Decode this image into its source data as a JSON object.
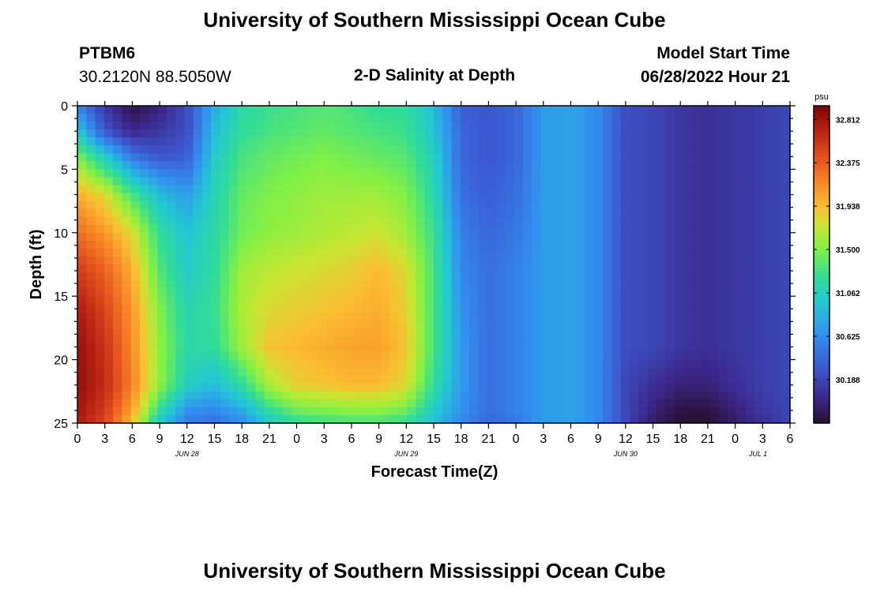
{
  "page": {
    "title": "University of Southern Mississippi Ocean Cube",
    "station_id": "PTBM6",
    "station_coords": "30.2120N  88.5050W",
    "plot_title": "2-D Salinity at Depth",
    "model_start_label": "Model Start Time",
    "model_start_value": "06/28/2022 Hour 21",
    "footer_title": "University of Southern Mississippi Ocean Cube"
  },
  "chart_data": {
    "type": "heatmap",
    "title": "2-D Salinity at Depth",
    "xlabel": "Forecast Time(Z)",
    "ylabel": "Depth (ft)",
    "x_range_hours": [
      0,
      78
    ],
    "y_range_ft": [
      0,
      25
    ],
    "x_tick_labels": [
      "0",
      "3",
      "6",
      "9",
      "12",
      "15",
      "18",
      "21",
      "0",
      "3",
      "6",
      "9",
      "12",
      "15",
      "18",
      "21",
      "0",
      "3",
      "6",
      "9",
      "12",
      "15",
      "18",
      "21",
      "0",
      "3",
      "6"
    ],
    "date_labels": [
      {
        "label": "JUN 28",
        "hour": 12
      },
      {
        "label": "JUN 29",
        "hour": 36
      },
      {
        "label": "JUN 30",
        "hour": 60
      },
      {
        "label": "JUL 1",
        "hour": 74.5
      }
    ],
    "y_ticks": [
      0,
      5,
      10,
      15,
      20,
      25
    ],
    "colorbar": {
      "unit": "psu",
      "min": 29.75,
      "max": 32.95,
      "tick_labels": [
        "32.812",
        "32.375",
        "31.938",
        "31.500",
        "31.062",
        "30.625",
        "30.188"
      ]
    },
    "salinity_grid": {
      "depths_ft": [
        0,
        2,
        4,
        7,
        10,
        13,
        16,
        19,
        22,
        24,
        25
      ],
      "hours": [
        0,
        3,
        6,
        9,
        12,
        15,
        18,
        21,
        24,
        27,
        30,
        33,
        36,
        39,
        42,
        45,
        48,
        51,
        54,
        57,
        60,
        63,
        66,
        69,
        72,
        75,
        78
      ],
      "values": [
        [
          30.55,
          30.1,
          29.8,
          29.95,
          30.25,
          30.8,
          31.15,
          31.25,
          31.3,
          31.35,
          31.3,
          31.2,
          31.2,
          30.9,
          30.35,
          30.3,
          30.4,
          30.7,
          30.75,
          30.6,
          30.25,
          30.2,
          30.1,
          30.05,
          30.1,
          30.15,
          30.2
        ],
        [
          31.0,
          30.3,
          30.0,
          30.1,
          30.25,
          30.9,
          31.2,
          31.3,
          31.35,
          31.4,
          31.35,
          31.3,
          31.25,
          30.95,
          30.4,
          30.3,
          30.4,
          30.7,
          30.75,
          30.6,
          30.25,
          30.2,
          30.1,
          30.05,
          30.1,
          30.15,
          30.2
        ],
        [
          31.5,
          31.0,
          30.5,
          30.3,
          30.35,
          31.0,
          31.3,
          31.4,
          31.45,
          31.5,
          31.45,
          31.4,
          31.35,
          31.05,
          30.4,
          30.3,
          30.4,
          30.7,
          30.75,
          30.6,
          30.25,
          30.2,
          30.1,
          30.05,
          30.1,
          30.15,
          30.2
        ],
        [
          32.0,
          31.8,
          31.3,
          30.9,
          30.7,
          31.1,
          31.4,
          31.5,
          31.55,
          31.6,
          31.6,
          31.6,
          31.5,
          31.15,
          30.45,
          30.35,
          30.45,
          30.7,
          30.75,
          30.6,
          30.25,
          30.2,
          30.1,
          30.05,
          30.1,
          30.15,
          30.2
        ],
        [
          32.3,
          32.1,
          31.8,
          31.2,
          30.95,
          31.15,
          31.45,
          31.55,
          31.6,
          31.65,
          31.7,
          31.75,
          31.6,
          31.25,
          30.55,
          30.4,
          30.5,
          30.7,
          30.75,
          30.6,
          30.25,
          30.2,
          30.1,
          30.05,
          30.1,
          30.15,
          30.2
        ],
        [
          32.55,
          32.35,
          32.0,
          31.35,
          31.0,
          31.2,
          31.6,
          31.7,
          31.75,
          31.8,
          31.85,
          31.95,
          31.8,
          31.3,
          30.6,
          30.45,
          30.55,
          30.7,
          30.75,
          30.6,
          30.25,
          30.2,
          30.1,
          30.05,
          30.1,
          30.15,
          30.2
        ],
        [
          32.75,
          32.5,
          32.1,
          31.5,
          31.1,
          31.25,
          31.65,
          31.8,
          31.85,
          31.9,
          31.95,
          32.0,
          31.85,
          31.3,
          30.65,
          30.45,
          30.55,
          30.7,
          30.75,
          30.6,
          30.25,
          30.2,
          30.1,
          30.05,
          30.1,
          30.15,
          30.2
        ],
        [
          32.85,
          32.6,
          32.15,
          31.55,
          31.15,
          31.2,
          31.6,
          31.9,
          31.95,
          32.0,
          32.05,
          32.05,
          31.9,
          31.3,
          30.7,
          30.45,
          30.55,
          30.7,
          30.75,
          30.6,
          30.25,
          30.2,
          30.1,
          30.05,
          30.1,
          30.15,
          30.2
        ],
        [
          32.85,
          32.65,
          32.2,
          31.55,
          31.05,
          30.9,
          31.2,
          31.65,
          31.85,
          31.9,
          31.95,
          31.95,
          31.8,
          31.2,
          30.7,
          30.45,
          30.55,
          30.7,
          30.75,
          30.6,
          30.2,
          30.05,
          29.95,
          29.95,
          30.05,
          30.15,
          30.2
        ],
        [
          32.8,
          32.55,
          32.05,
          31.2,
          30.65,
          30.6,
          30.8,
          31.2,
          31.45,
          31.5,
          31.55,
          31.55,
          31.45,
          31.0,
          30.65,
          30.45,
          30.55,
          30.7,
          30.75,
          30.6,
          30.2,
          29.95,
          29.8,
          29.8,
          29.95,
          30.1,
          30.2
        ],
        [
          32.75,
          32.5,
          31.9,
          30.95,
          30.5,
          30.45,
          30.6,
          31.0,
          31.2,
          31.25,
          31.3,
          31.3,
          31.2,
          30.9,
          30.6,
          30.4,
          30.5,
          30.7,
          30.75,
          30.6,
          30.2,
          29.9,
          29.75,
          29.75,
          29.9,
          30.05,
          30.2
        ]
      ]
    }
  }
}
